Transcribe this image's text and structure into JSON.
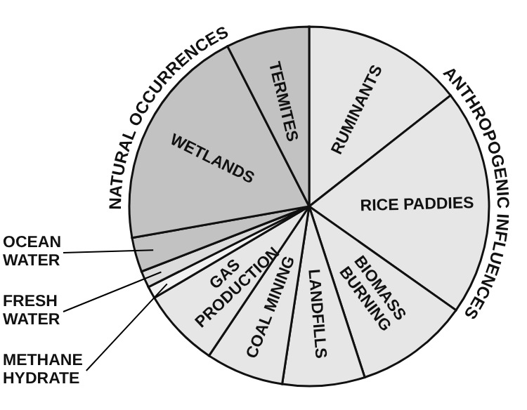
{
  "chart_data": {
    "type": "pie",
    "categories": [
      "RUMINANTS",
      "RICE PADDIES",
      "BIOMASS BURNING",
      "LANDFILLS",
      "COAL MINING",
      "GAS PRODUCTION",
      "METHANE HYDRATE",
      "FRESH WATER",
      "OCEAN WATER",
      "WETLANDS",
      "TERMITES"
    ],
    "values": [
      14.4,
      20.4,
      10.2,
      7.4,
      7.0,
      7.1,
      1.1,
      1.5,
      3.1,
      20.3,
      7.5
    ],
    "colors": [
      "#e6e6e6",
      "#e6e6e6",
      "#e6e6e6",
      "#e6e6e6",
      "#e6e6e6",
      "#e6e6e6",
      "#f2f2f2",
      "#dcdcdc",
      "#c2c2c2",
      "#c2c2c2",
      "#c2c2c2"
    ],
    "annotations": [
      "ANTHROPOGENIC INFLUENCES",
      "NATURAL OCCURRENCES"
    ],
    "legend": false
  }
}
